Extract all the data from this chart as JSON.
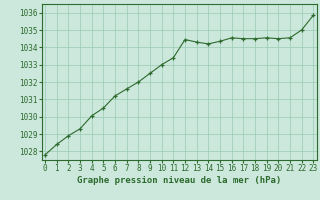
{
  "x": [
    0,
    1,
    2,
    3,
    4,
    5,
    6,
    7,
    8,
    9,
    10,
    11,
    12,
    13,
    14,
    15,
    16,
    17,
    18,
    19,
    20,
    21,
    22,
    23
  ],
  "y": [
    1027.8,
    1028.4,
    1028.9,
    1029.3,
    1030.05,
    1030.5,
    1031.2,
    1031.6,
    1032.0,
    1032.5,
    1033.0,
    1033.4,
    1034.45,
    1034.3,
    1034.2,
    1034.35,
    1034.55,
    1034.5,
    1034.5,
    1034.55,
    1034.5,
    1034.55,
    1035.0,
    1035.85
  ],
  "line_color": "#2d6a2d",
  "marker": "+",
  "background_color": "#cce8dc",
  "grid_color": "#99ccb3",
  "label_color": "#2d6a2d",
  "xlabel": "Graphe pression niveau de la mer (hPa)",
  "ylim": [
    1027.5,
    1036.5
  ],
  "yticks": [
    1028,
    1029,
    1030,
    1031,
    1032,
    1033,
    1034,
    1035,
    1036
  ],
  "xticks": [
    0,
    1,
    2,
    3,
    4,
    5,
    6,
    7,
    8,
    9,
    10,
    11,
    12,
    13,
    14,
    15,
    16,
    17,
    18,
    19,
    20,
    21,
    22,
    23
  ],
  "xlim": [
    -0.3,
    23.3
  ]
}
